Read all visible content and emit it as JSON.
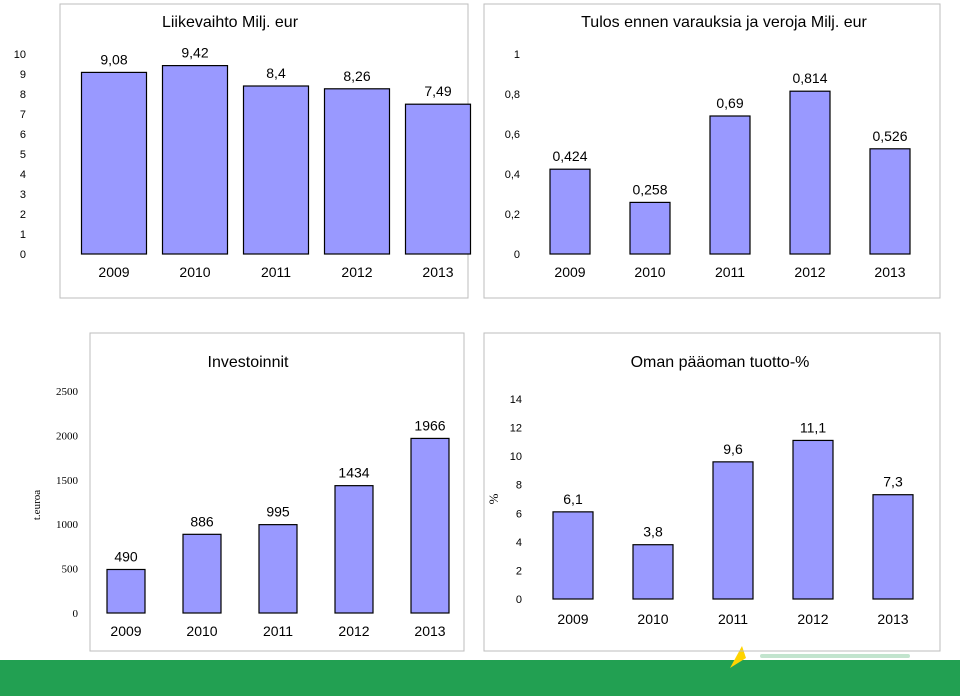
{
  "colors": {
    "bar_fill": "#9999ff",
    "bar_stroke": "#000000",
    "frame": "#bdbdbd",
    "footer_band": "#22a052",
    "logo_accent": "#ffd400"
  },
  "chart_data": [
    {
      "type": "bar",
      "title": "Liikevaihto Milj. eur",
      "ylabel": "",
      "categories": [
        "2009",
        "2010",
        "2011",
        "2012",
        "2013"
      ],
      "values": [
        9.08,
        9.42,
        8.4,
        8.26,
        7.49
      ],
      "value_labels": [
        "9,08",
        "9,42",
        "8,4",
        "8,26",
        "7,49"
      ],
      "ylim": [
        0,
        10
      ],
      "y_ticks": [
        0,
        1,
        2,
        3,
        4,
        5,
        6,
        7,
        8,
        9,
        10
      ],
      "y_tick_labels": [
        "0",
        "1",
        "2",
        "3",
        "4",
        "5",
        "6",
        "7",
        "8",
        "9",
        "10"
      ],
      "grid": false,
      "legend": "none"
    },
    {
      "type": "bar",
      "title": "Tulos ennen varauksia ja veroja Milj. eur",
      "ylabel": "",
      "categories": [
        "2009",
        "2010",
        "2011",
        "2012",
        "2013"
      ],
      "values": [
        0.424,
        0.258,
        0.69,
        0.814,
        0.526
      ],
      "value_labels": [
        "0,424",
        "0,258",
        "0,69",
        "0,814",
        "0,526"
      ],
      "ylim": [
        0,
        1
      ],
      "y_ticks": [
        0,
        0.2,
        0.4,
        0.6,
        0.8,
        1
      ],
      "y_tick_labels": [
        "0",
        "0,2",
        "0,4",
        "0,6",
        "0,8",
        "1"
      ],
      "grid": false,
      "legend": "none"
    },
    {
      "type": "bar",
      "title": "Investoinnit",
      "ylabel": "t.euroa",
      "categories": [
        "2009",
        "2010",
        "2011",
        "2012",
        "2013"
      ],
      "values": [
        490,
        886,
        995,
        1434,
        1966
      ],
      "value_labels": [
        "490",
        "886",
        "995",
        "1434",
        "1966"
      ],
      "ylim": [
        0,
        2500
      ],
      "y_ticks": [
        0,
        500,
        1000,
        1500,
        2000,
        2500
      ],
      "y_tick_labels": [
        "0",
        "500",
        "1000",
        "1500",
        "2000",
        "2500"
      ],
      "grid": false,
      "legend": "none"
    },
    {
      "type": "bar",
      "title": "Oman pääoman tuotto-%",
      "ylabel": "%",
      "categories": [
        "2009",
        "2010",
        "2011",
        "2012",
        "2013"
      ],
      "values": [
        6.1,
        3.8,
        9.6,
        11.1,
        7.3
      ],
      "value_labels": [
        "6,1",
        "3,8",
        "9,6",
        "11,1",
        "7,3"
      ],
      "ylim": [
        0,
        14
      ],
      "y_ticks": [
        0,
        2,
        4,
        6,
        8,
        10,
        12,
        14
      ],
      "y_tick_labels": [
        "0",
        "2",
        "4",
        "6",
        "8",
        "10",
        "12",
        "14"
      ],
      "grid": false,
      "legend": "none"
    }
  ]
}
